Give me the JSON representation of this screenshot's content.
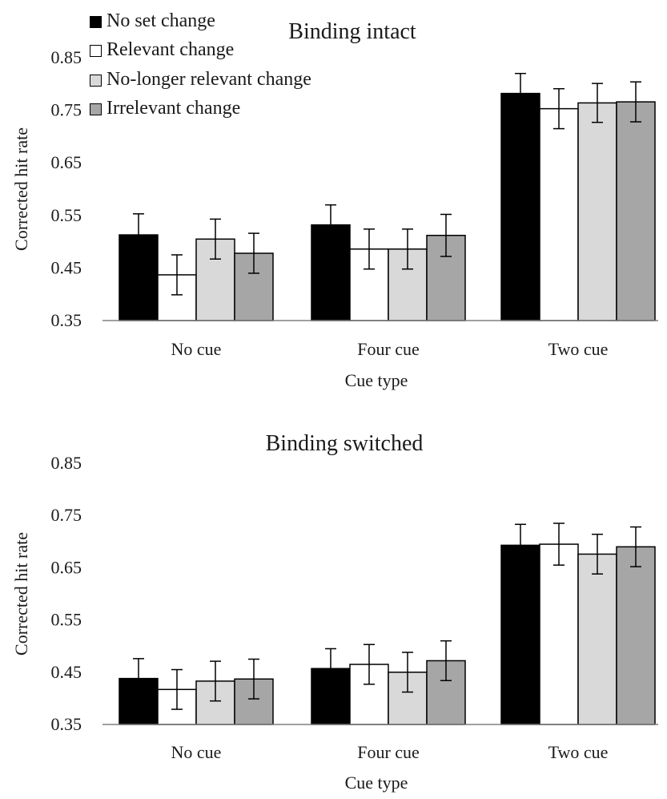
{
  "legend": [
    {
      "label": "No set change",
      "color": "#000000"
    },
    {
      "label": "Relevant change",
      "color": "#ffffff"
    },
    {
      "label": "No-longer relevant change",
      "color": "#d9d9d9"
    },
    {
      "label": "Irrelevant change",
      "color": "#a6a6a6"
    }
  ],
  "chart_data": [
    {
      "type": "bar",
      "title": "Binding intact",
      "xlabel": "Cue type",
      "ylabel": "Corrected hit rate",
      "ylim": [
        0.35,
        0.85
      ],
      "yticks": [
        "0.35",
        "0.45",
        "0.55",
        "0.65",
        "0.75",
        "0.85"
      ],
      "categories": [
        "No cue",
        "Four cue",
        "Two cue"
      ],
      "legend": "top-left",
      "series": [
        {
          "name": "No set change",
          "color": "#000000",
          "values": [
            0.513,
            0.532,
            0.782
          ],
          "errors": [
            0.04,
            0.038,
            0.038
          ]
        },
        {
          "name": "Relevant change",
          "color": "#ffffff",
          "values": [
            0.437,
            0.486,
            0.753
          ],
          "errors": [
            0.038,
            0.038,
            0.038
          ]
        },
        {
          "name": "No-longer relevant change",
          "color": "#d9d9d9",
          "values": [
            0.505,
            0.486,
            0.764
          ],
          "errors": [
            0.038,
            0.038,
            0.037
          ]
        },
        {
          "name": "Irrelevant change",
          "color": "#a6a6a6",
          "values": [
            0.478,
            0.512,
            0.766
          ],
          "errors": [
            0.038,
            0.04,
            0.038
          ]
        }
      ]
    },
    {
      "type": "bar",
      "title": "Binding switched",
      "xlabel": "Cue type",
      "ylabel": "Corrected hit rate",
      "ylim": [
        0.35,
        0.85
      ],
      "yticks": [
        "0.35",
        "0.45",
        "0.55",
        "0.65",
        "0.75",
        "0.85"
      ],
      "categories": [
        "No cue",
        "Four cue",
        "Two cue"
      ],
      "series": [
        {
          "name": "No set change",
          "color": "#000000",
          "values": [
            0.438,
            0.457,
            0.693
          ],
          "errors": [
            0.038,
            0.038,
            0.04
          ]
        },
        {
          "name": "Relevant change",
          "color": "#ffffff",
          "values": [
            0.417,
            0.465,
            0.695
          ],
          "errors": [
            0.038,
            0.038,
            0.04
          ]
        },
        {
          "name": "No-longer relevant change",
          "color": "#d9d9d9",
          "values": [
            0.433,
            0.45,
            0.676
          ],
          "errors": [
            0.038,
            0.038,
            0.038
          ]
        },
        {
          "name": "Irrelevant change",
          "color": "#a6a6a6",
          "values": [
            0.437,
            0.472,
            0.69
          ],
          "errors": [
            0.038,
            0.038,
            0.038
          ]
        }
      ]
    }
  ]
}
